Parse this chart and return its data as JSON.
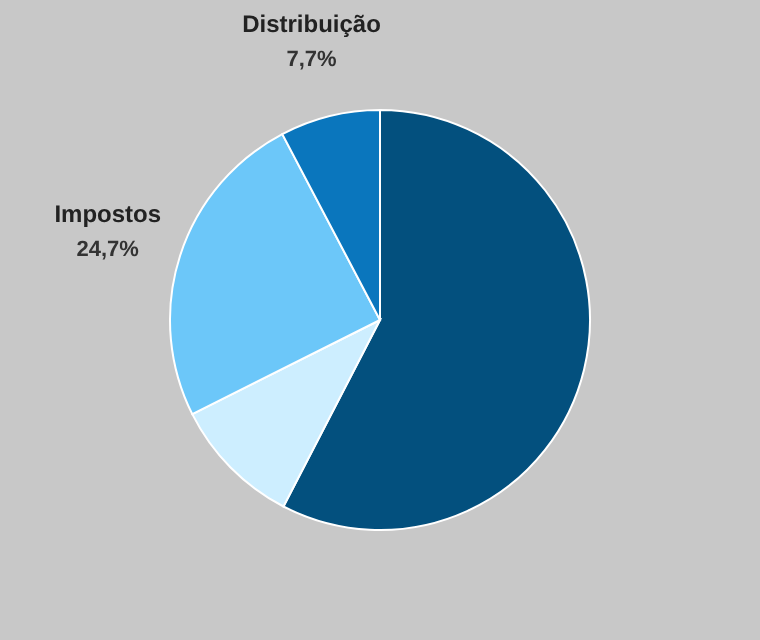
{
  "chart_data": {
    "type": "pie",
    "categories": [
      null,
      null,
      "Impostos",
      "Distribuição"
    ],
    "values": [
      57.6,
      10.0,
      24.7,
      7.7
    ],
    "colors": [
      "#03507e",
      "#cdeeff",
      "#6cc7f9",
      "#0a76bd"
    ],
    "value_labels": [
      null,
      null,
      "24,7%",
      "7,7%"
    ],
    "legend": false
  }
}
